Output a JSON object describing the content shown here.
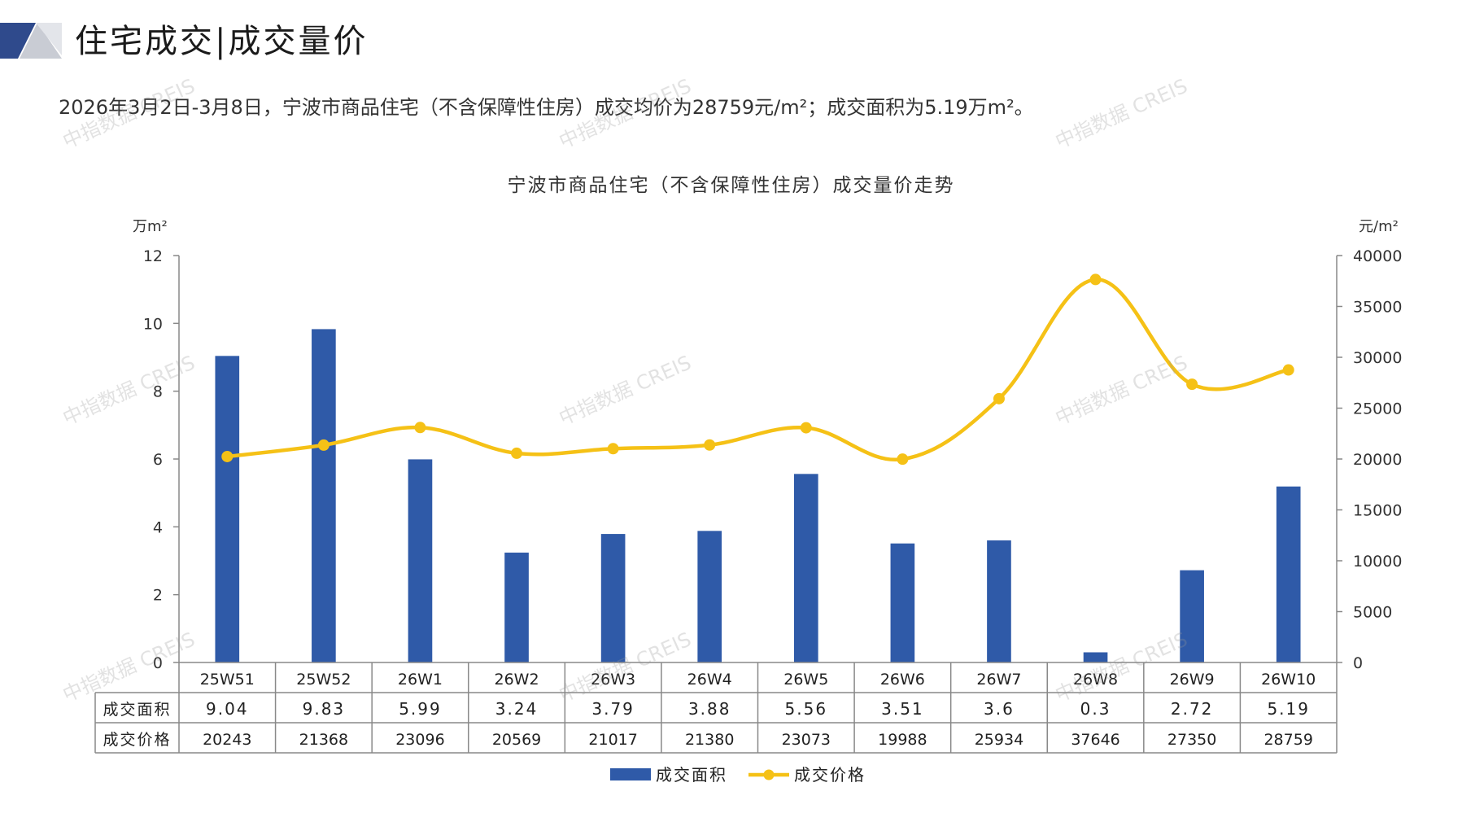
{
  "header": {
    "title": "住宅成交|成交量价",
    "summary": "2026年3月2日-3月8日，宁波市商品住宅（不含保障性住房）成交均价为28759元/m²；成交面积为5.19万m²。"
  },
  "watermark_text": "中指数据 CREIS",
  "colors": {
    "bar": "#2f5aa8",
    "line": "#f5c116",
    "grid": "#888888",
    "logo_dark": "#2f4a8c",
    "logo_light": "#c9ccd4"
  },
  "chart_data": {
    "type": "bar+line",
    "title": "宁波市商品住宅（不含保障性住房）成交量价走势",
    "y_left_unit": "万m²",
    "y_right_unit": "元/m²",
    "y_left_lim": [
      0,
      12
    ],
    "y_left_ticks": [
      0,
      2,
      4,
      6,
      8,
      10,
      12
    ],
    "y_right_lim": [
      0,
      40000
    ],
    "y_right_ticks": [
      0,
      5000,
      10000,
      15000,
      20000,
      25000,
      30000,
      35000,
      40000
    ],
    "categories": [
      "25W51",
      "25W52",
      "26W1",
      "26W2",
      "26W3",
      "26W4",
      "26W5",
      "26W6",
      "26W7",
      "26W8",
      "26W9",
      "26W10"
    ],
    "series": [
      {
        "name": "成交面积",
        "type": "bar",
        "axis": "left",
        "values": [
          9.04,
          9.83,
          5.99,
          3.24,
          3.79,
          3.88,
          5.56,
          3.51,
          3.6,
          0.3,
          2.72,
          5.19
        ],
        "labels": [
          "9.04",
          "9.83",
          "5.99",
          "3.24",
          "3.79",
          "3.88",
          "5.56",
          "3.51",
          "3.6",
          "0.3",
          "2.72",
          "5.19"
        ]
      },
      {
        "name": "成交价格",
        "type": "line",
        "axis": "right",
        "values": [
          20243,
          21368,
          23096,
          20569,
          21017,
          21380,
          23073,
          19988,
          25934,
          37646,
          27350,
          28759
        ],
        "labels": [
          "20243",
          "21368",
          "23096",
          "20569",
          "21017",
          "21380",
          "23073",
          "19988",
          "25934",
          "37646",
          "27350",
          "28759"
        ]
      }
    ],
    "grid": false,
    "legend": "bottom-center"
  }
}
